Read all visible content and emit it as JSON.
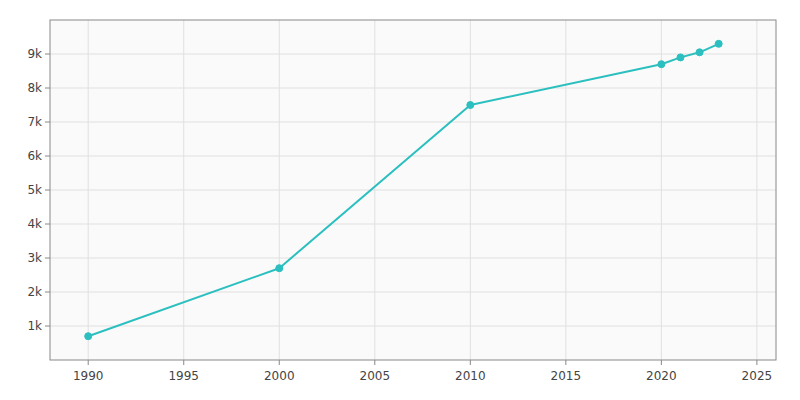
{
  "chart_data": {
    "type": "line",
    "x": [
      1990,
      2000,
      2010,
      2020,
      2021,
      2022,
      2023
    ],
    "values": [
      700,
      2700,
      7500,
      8700,
      8900,
      9050,
      9300
    ],
    "color": "#2bbfbf",
    "marker": "circle",
    "xlim": [
      1988,
      2026
    ],
    "ylim": [
      0,
      10000
    ],
    "xticks": [
      1990,
      1995,
      2000,
      2005,
      2010,
      2015,
      2020,
      2025
    ],
    "yticks": [
      {
        "value": 1000,
        "label": "1k"
      },
      {
        "value": 2000,
        "label": "2k"
      },
      {
        "value": 3000,
        "label": "3k"
      },
      {
        "value": 4000,
        "label": "4k"
      },
      {
        "value": 5000,
        "label": "5k"
      },
      {
        "value": 6000,
        "label": "6k"
      },
      {
        "value": 7000,
        "label": "7k"
      },
      {
        "value": 8000,
        "label": "8k"
      },
      {
        "value": 9000,
        "label": "9k"
      }
    ],
    "grid": true
  }
}
